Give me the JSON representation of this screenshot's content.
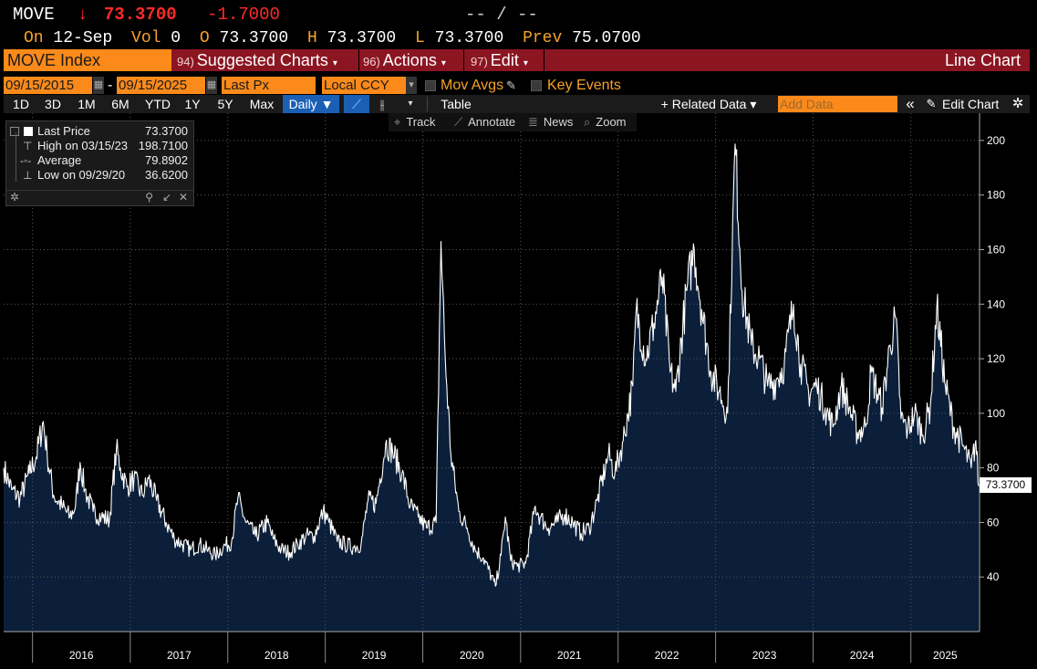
{
  "quote": {
    "ticker": "MOVE",
    "arrow": "↓",
    "last": "73.3700",
    "change": "-1.7000",
    "bid_ask": "-- / --",
    "on_label": "On",
    "date": "12-Sep",
    "vol_label": "Vol",
    "vol": "0",
    "open_label": "O",
    "open": "73.3700",
    "high_label": "H",
    "high": "73.3700",
    "low_label": "L",
    "low": "73.3700",
    "prev_label": "Prev",
    "prev": "75.0700"
  },
  "command_bar": {
    "security": "MOVE Index",
    "items": [
      {
        "num": "94)",
        "label": "Suggested Charts"
      },
      {
        "num": "96)",
        "label": "Actions"
      },
      {
        "num": "97)",
        "label": "Edit"
      }
    ],
    "chart_type": "Line Chart"
  },
  "date_row": {
    "start": "09/15/2015",
    "dash": "-",
    "end": "09/15/2025",
    "field": "Last Px",
    "currency": "Local CCY",
    "mov_avgs": "Mov Avgs",
    "key_events": "Key Events"
  },
  "toolbar": {
    "periods": [
      "1D",
      "3D",
      "1M",
      "6M",
      "YTD",
      "1Y",
      "5Y",
      "Max"
    ],
    "frequency": "Daily ▼",
    "table": "Table",
    "related_data": "+ Related Data ▾",
    "add_data_placeholder": "Add Data",
    "collapse": "«",
    "edit_chart": "Edit Chart"
  },
  "chart_tools": {
    "track": "Track",
    "annotate": "Annotate",
    "news": "News",
    "zoom": "Zoom"
  },
  "legend": {
    "rows": [
      {
        "name": "Last Price",
        "value": "73.3700"
      },
      {
        "name": "High on 03/15/23",
        "value": "198.7100"
      },
      {
        "name": "Average",
        "value": "79.8902"
      },
      {
        "name": "Low on 09/29/20",
        "value": "36.6200"
      }
    ]
  },
  "colors": {
    "orange": "#fb8a1a",
    "red_bar": "#8c1522",
    "down_red": "#ff2a2a",
    "area_fill": "#0b1f3a",
    "line": "#ffffff"
  },
  "chart_data": {
    "type": "area",
    "series": [
      {
        "name": "Last Price",
        "points": [
          [
            "2015-09-15",
            80
          ],
          [
            "2015-10-15",
            72
          ],
          [
            "2015-11-15",
            69
          ],
          [
            "2015-12-20",
            78
          ],
          [
            "2016-01-15",
            84
          ],
          [
            "2016-02-10",
            97
          ],
          [
            "2016-02-25",
            85
          ],
          [
            "2016-03-20",
            70
          ],
          [
            "2016-04-20",
            66
          ],
          [
            "2016-05-20",
            62
          ],
          [
            "2016-06-10",
            66
          ],
          [
            "2016-06-27",
            82
          ],
          [
            "2016-07-15",
            72
          ],
          [
            "2016-08-15",
            64
          ],
          [
            "2016-09-15",
            62
          ],
          [
            "2016-10-15",
            61
          ],
          [
            "2016-11-10",
            87
          ],
          [
            "2016-11-25",
            80
          ],
          [
            "2016-12-20",
            73
          ],
          [
            "2017-01-15",
            76
          ],
          [
            "2017-02-15",
            70
          ],
          [
            "2017-03-10",
            76
          ],
          [
            "2017-04-10",
            68
          ],
          [
            "2017-05-15",
            60
          ],
          [
            "2017-06-15",
            54
          ],
          [
            "2017-07-15",
            52
          ],
          [
            "2017-08-15",
            50
          ],
          [
            "2017-09-15",
            52
          ],
          [
            "2017-10-15",
            50
          ],
          [
            "2017-11-15",
            48
          ],
          [
            "2017-12-15",
            51
          ],
          [
            "2018-01-15",
            53
          ],
          [
            "2018-02-08",
            69
          ],
          [
            "2018-03-10",
            60
          ],
          [
            "2018-04-15",
            55
          ],
          [
            "2018-05-29",
            60
          ],
          [
            "2018-06-20",
            54
          ],
          [
            "2018-07-20",
            50
          ],
          [
            "2018-08-20",
            49
          ],
          [
            "2018-09-20",
            52
          ],
          [
            "2018-10-20",
            55
          ],
          [
            "2018-11-20",
            55
          ],
          [
            "2018-12-24",
            64
          ],
          [
            "2019-01-15",
            60
          ],
          [
            "2019-02-15",
            53
          ],
          [
            "2019-03-15",
            52
          ],
          [
            "2019-04-15",
            51
          ],
          [
            "2019-05-15",
            52
          ],
          [
            "2019-06-10",
            68
          ],
          [
            "2019-07-10",
            67
          ],
          [
            "2019-08-15",
            89
          ],
          [
            "2019-09-10",
            86
          ],
          [
            "2019-10-15",
            78
          ],
          [
            "2019-11-15",
            66
          ],
          [
            "2019-12-15",
            62
          ],
          [
            "2020-01-15",
            58
          ],
          [
            "2020-02-20",
            60
          ],
          [
            "2020-03-09",
            163
          ],
          [
            "2020-03-25",
            120
          ],
          [
            "2020-04-15",
            85
          ],
          [
            "2020-05-15",
            64
          ],
          [
            "2020-06-15",
            58
          ],
          [
            "2020-07-15",
            50
          ],
          [
            "2020-08-15",
            47
          ],
          [
            "2020-09-29",
            36.62
          ],
          [
            "2020-10-20",
            48
          ],
          [
            "2020-11-05",
            62
          ],
          [
            "2020-11-25",
            46
          ],
          [
            "2020-12-20",
            44
          ],
          [
            "2021-01-20",
            45
          ],
          [
            "2021-02-25",
            66
          ],
          [
            "2021-03-15",
            62
          ],
          [
            "2021-04-15",
            58
          ],
          [
            "2021-05-15",
            60
          ],
          [
            "2021-06-15",
            63
          ],
          [
            "2021-07-15",
            60
          ],
          [
            "2021-08-15",
            56
          ],
          [
            "2021-09-15",
            58
          ],
          [
            "2021-10-15",
            68
          ],
          [
            "2021-11-26",
            85
          ],
          [
            "2021-12-20",
            78
          ],
          [
            "2022-01-20",
            90
          ],
          [
            "2022-02-25",
            110
          ],
          [
            "2022-03-10",
            138
          ],
          [
            "2022-04-15",
            120
          ],
          [
            "2022-05-15",
            133
          ],
          [
            "2022-06-15",
            150
          ],
          [
            "2022-07-15",
            115
          ],
          [
            "2022-08-05",
            108
          ],
          [
            "2022-09-15",
            145
          ],
          [
            "2022-10-13",
            160
          ],
          [
            "2022-11-10",
            138
          ],
          [
            "2022-12-15",
            115
          ],
          [
            "2023-01-15",
            108
          ],
          [
            "2023-02-15",
            100
          ],
          [
            "2023-03-15",
            198.71
          ],
          [
            "2023-04-10",
            145
          ],
          [
            "2023-05-15",
            125
          ],
          [
            "2023-06-15",
            120
          ],
          [
            "2023-07-15",
            110
          ],
          [
            "2023-08-15",
            112
          ],
          [
            "2023-09-15",
            118
          ],
          [
            "2023-10-20",
            140
          ],
          [
            "2023-11-15",
            118
          ],
          [
            "2023-12-15",
            108
          ],
          [
            "2024-01-15",
            110
          ],
          [
            "2024-02-15",
            102
          ],
          [
            "2024-03-15",
            95
          ],
          [
            "2024-04-15",
            110
          ],
          [
            "2024-05-15",
            102
          ],
          [
            "2024-06-15",
            93
          ],
          [
            "2024-07-15",
            95
          ],
          [
            "2024-08-05",
            115
          ],
          [
            "2024-09-15",
            102
          ],
          [
            "2024-10-15",
            125
          ],
          [
            "2024-11-05",
            135
          ],
          [
            "2024-11-25",
            98
          ],
          [
            "2024-12-20",
            94
          ],
          [
            "2025-01-15",
            100
          ],
          [
            "2025-02-15",
            92
          ],
          [
            "2025-03-15",
            103
          ],
          [
            "2025-04-08",
            139
          ],
          [
            "2025-05-10",
            110
          ],
          [
            "2025-06-10",
            95
          ],
          [
            "2025-07-15",
            88
          ],
          [
            "2025-08-15",
            80
          ],
          [
            "2025-09-01",
            90
          ],
          [
            "2025-09-12",
            73.37
          ]
        ]
      }
    ],
    "x_ticks": [
      "2016",
      "2017",
      "2018",
      "2019",
      "2020",
      "2021",
      "2022",
      "2023",
      "2024",
      "2025"
    ],
    "y_ticks": [
      40,
      60,
      80,
      100,
      120,
      140,
      160,
      180,
      200
    ],
    "xlim": [
      "2015-09-15",
      "2025-09-15"
    ],
    "ylim": [
      20,
      210
    ],
    "grid": true,
    "axis_position": "right",
    "legend_position": "top-left",
    "last_value_label": "73.3700"
  }
}
